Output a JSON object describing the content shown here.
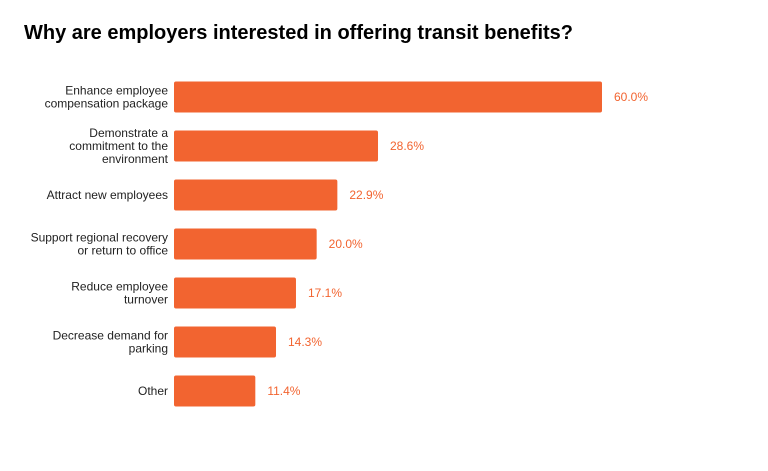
{
  "chart_data": {
    "type": "bar",
    "orientation": "horizontal",
    "title": "Why are employers interested in offering transit benefits?",
    "categories": [
      [
        "Enhance employee",
        "compensation package"
      ],
      [
        "Demonstrate a",
        "commitment to the",
        "environment"
      ],
      [
        "Attract new employees"
      ],
      [
        "Support regional recovery",
        "or return to office"
      ],
      [
        "Reduce employee",
        "turnover"
      ],
      [
        "Decrease demand for",
        "parking"
      ],
      [
        "Other"
      ]
    ],
    "values": [
      60.0,
      28.6,
      22.9,
      20.0,
      17.1,
      14.3,
      11.4
    ],
    "value_labels": [
      "60.0%",
      "28.6%",
      "22.9%",
      "20.0%",
      "17.1%",
      "14.3%",
      "11.4%"
    ],
    "xlim": [
      0,
      60
    ],
    "grid": false,
    "legend": "none"
  },
  "colors": {
    "bar": "#F26430",
    "value_label": "#F26430"
  }
}
